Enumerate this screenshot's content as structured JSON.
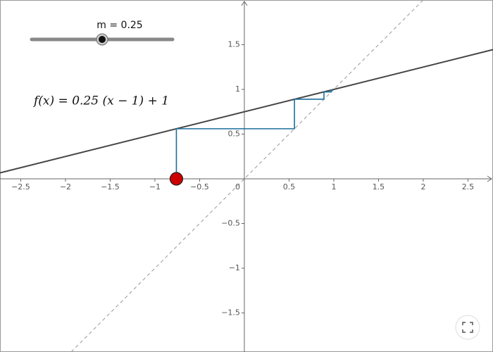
{
  "chart_data": {
    "type": "cobweb",
    "slider": {
      "label": "m = 0.25",
      "value": 0.25,
      "min": 0,
      "max": 0.5
    },
    "formula": "f(x) = 0.25 (x − 1) + 1",
    "line": {
      "slope": 0.25,
      "x0": 1,
      "y0": 1,
      "color": "#444444"
    },
    "cobweb": {
      "x": [
        -0.76,
        -0.76,
        0.56,
        0.56,
        0.89,
        0.89,
        0.972,
        0.972,
        0.993
      ],
      "y": [
        0,
        0.56,
        0.56,
        0.89,
        0.89,
        0.972,
        0.972,
        0.993,
        0.993
      ],
      "color": "#1c6e9c"
    },
    "point_color": "#cc0000",
    "xlim": [
      -2.732,
      2.78
    ],
    "ylim": [
      -1.937,
      2.0
    ],
    "xticks": [
      {
        "value": -2.5,
        "label": "−2.5"
      },
      {
        "value": -2,
        "label": "−2"
      },
      {
        "value": -1.5,
        "label": "−1.5"
      },
      {
        "value": -1,
        "label": "−1"
      },
      {
        "value": -0.5,
        "label": "−0.5"
      },
      0,
      0.5,
      1,
      1.5,
      2,
      2.5
    ],
    "yticks": [
      {
        "value": -1.5,
        "label": "−1.5"
      },
      {
        "value": -1,
        "label": "−1"
      },
      {
        "value": -0.5,
        "label": "−0.5"
      },
      0.5,
      1,
      1.5
    ]
  }
}
